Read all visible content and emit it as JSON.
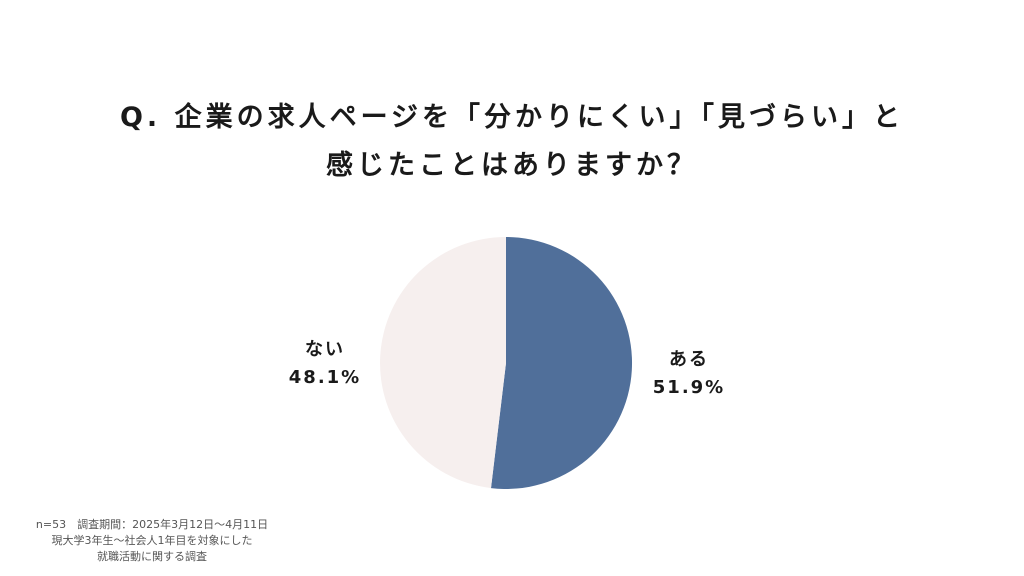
{
  "title": {
    "line1": "Q. 企業の求人ページを「分かりにくい」「見づらい」と",
    "line2": "感じたことはありますか？"
  },
  "chart_data": {
    "type": "pie",
    "categories": [
      "ある",
      "ない"
    ],
    "values": [
      51.9,
      48.1
    ],
    "value_labels": [
      "51.9%",
      "48.1%"
    ],
    "colors": [
      "#506f9a",
      "#f6efee"
    ],
    "start": "12 o'clock",
    "direction": "clockwise"
  },
  "note": {
    "line1": "n=53　調査期間：2025年3月12日〜4月11日",
    "line2": "現大学3年生〜社会人1年目を対象にした",
    "line3": "就職活動に関する調査"
  }
}
